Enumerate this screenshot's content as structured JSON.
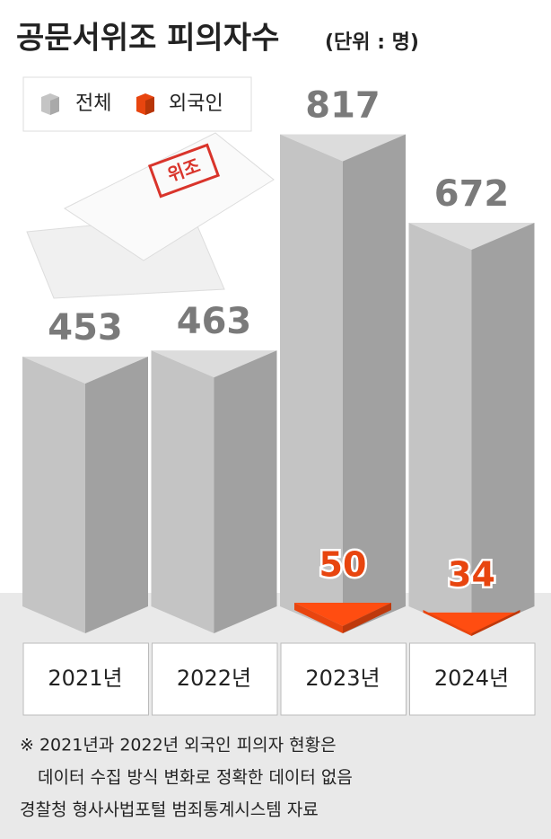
{
  "chart_data": {
    "type": "bar",
    "title": "공문서위조 피의자수",
    "subtitle": "(단위 : 명)",
    "annotation": "위조",
    "categories": [
      "2021년",
      "2022년",
      "2023년",
      "2024년"
    ],
    "series": [
      {
        "name": "전체",
        "color": "#c4c4c4",
        "values": [
          453,
          463,
          817,
          672
        ]
      },
      {
        "name": "외국인",
        "color": "#e8450f",
        "values": [
          null,
          null,
          50,
          34
        ]
      }
    ],
    "notes": [
      "※ 2021년과 2022년 외국인 피의자 현황은",
      "데이터 수집 방식 변화로 정확한 데이터 없음",
      "경찰청 형사사법포털 범죄통계시스템 자료"
    ]
  }
}
